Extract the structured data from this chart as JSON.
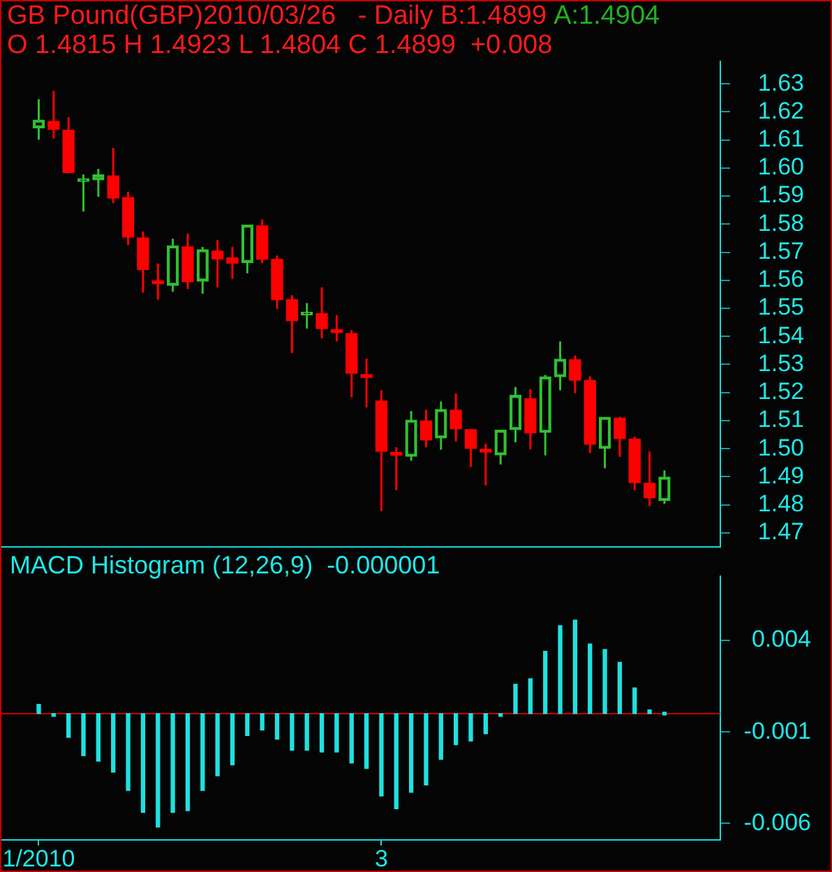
{
  "chart_data": [
    {
      "type": "candlestick",
      "title": "GB Pound(GBP)2010/03/26   - Daily B:1.4899",
      "subtitle": "O 1.4815 H 1.4923 L 1.4804 C 1.4899  +0.008",
      "annotations": [
        "A:1.4904"
      ],
      "categories": [
        null,
        null,
        null,
        null,
        null,
        null,
        null,
        null,
        null,
        null,
        null,
        null,
        null,
        null,
        null,
        null,
        null,
        null,
        null,
        null,
        null,
        null,
        null,
        null,
        null,
        null,
        null,
        null,
        null,
        null,
        null,
        null,
        null,
        null,
        null,
        null,
        null,
        null,
        null,
        null,
        null,
        null,
        null
      ],
      "ohlc": [
        [
          1.6143,
          1.6245,
          1.6101,
          1.6171
        ],
        [
          1.6166,
          1.6275,
          1.6105,
          1.6138
        ],
        [
          1.6135,
          1.6181,
          1.5981,
          1.5984
        ],
        [
          1.5952,
          1.5977,
          1.5845,
          1.596
        ],
        [
          1.5958,
          1.5997,
          1.5898,
          1.5976
        ],
        [
          1.5972,
          1.6072,
          1.5875,
          1.5893
        ],
        [
          1.5895,
          1.5916,
          1.5726,
          1.5754
        ],
        [
          1.5751,
          1.5774,
          1.5556,
          1.5638
        ],
        [
          1.5596,
          1.566,
          1.5531,
          1.5588
        ],
        [
          1.5582,
          1.5748,
          1.5559,
          1.5723
        ],
        [
          1.5719,
          1.5767,
          1.5569,
          1.5595
        ],
        [
          1.5597,
          1.5719,
          1.5552,
          1.5709
        ],
        [
          1.5704,
          1.5743,
          1.5575,
          1.5676
        ],
        [
          1.568,
          1.5719,
          1.5605,
          1.5661
        ],
        [
          1.5663,
          1.5797,
          1.5625,
          1.5797
        ],
        [
          1.5794,
          1.5817,
          1.5661,
          1.5675
        ],
        [
          1.5675,
          1.5688,
          1.5498,
          1.5531
        ],
        [
          1.5531,
          1.5547,
          1.5341,
          1.5456
        ],
        [
          1.5477,
          1.5519,
          1.5428,
          1.5485
        ],
        [
          1.5481,
          1.5575,
          1.5393,
          1.5428
        ],
        [
          1.5422,
          1.5476,
          1.5382,
          1.5414
        ],
        [
          1.541,
          1.5423,
          1.5183,
          1.5269
        ],
        [
          1.5262,
          1.5321,
          1.5147,
          1.5254
        ],
        [
          1.517,
          1.5208,
          1.4778,
          1.4991
        ],
        [
          1.4985,
          1.5005,
          1.4852,
          1.4977
        ],
        [
          1.4973,
          1.5134,
          1.4957,
          1.5102
        ],
        [
          1.5099,
          1.5139,
          1.5005,
          1.5031
        ],
        [
          1.5038,
          1.5168,
          1.4996,
          1.514
        ],
        [
          1.5137,
          1.5197,
          1.5026,
          1.5071
        ],
        [
          1.5068,
          1.5068,
          1.4935,
          1.5001
        ],
        [
          1.4994,
          1.5018,
          1.4869,
          1.4988
        ],
        [
          1.4978,
          1.5066,
          1.4944,
          1.5066
        ],
        [
          1.5068,
          1.522,
          1.5023,
          1.519
        ],
        [
          1.5178,
          1.5212,
          1.4998,
          1.5056
        ],
        [
          1.5058,
          1.5263,
          1.4976,
          1.5256
        ],
        [
          1.5256,
          1.5382,
          1.5208,
          1.5319
        ],
        [
          1.5317,
          1.5332,
          1.5198,
          1.5244
        ],
        [
          1.5243,
          1.5258,
          1.4985,
          1.5016
        ],
        [
          1.5001,
          1.5112,
          1.493,
          1.5112
        ],
        [
          1.5109,
          1.5114,
          1.4971,
          1.5036
        ],
        [
          1.5034,
          1.5043,
          1.4852,
          1.4879
        ],
        [
          1.4877,
          1.499,
          1.4795,
          1.4825
        ],
        [
          1.4815,
          1.4923,
          1.4804,
          1.4899
        ]
      ],
      "colors": [
        "#30c030",
        "#ff0000",
        "#ff0000",
        "#30c030",
        "#30c030",
        "#ff0000",
        "#ff0000",
        "#ff0000",
        "#ff0000",
        "#30c030",
        "#ff0000",
        "#30c030",
        "#ff0000",
        "#ff0000",
        "#30c030",
        "#ff0000",
        "#ff0000",
        "#ff0000",
        "#30c030",
        "#ff0000",
        "#ff0000",
        "#ff0000",
        "#ff0000",
        "#ff0000",
        "#ff0000",
        "#30c030",
        "#ff0000",
        "#30c030",
        "#ff0000",
        "#ff0000",
        "#ff0000",
        "#30c030",
        "#30c030",
        "#ff0000",
        "#30c030",
        "#30c030",
        "#ff0000",
        "#ff0000",
        "#30c030",
        "#ff0000",
        "#ff0000",
        "#ff0000",
        "#30c030"
      ],
      "ylim": [
        1.465,
        1.638
      ],
      "yticks": [
        1.47,
        1.48,
        1.49,
        {
          "value": 1.5,
          "label": "1.50"
        },
        1.51,
        1.52,
        1.53,
        1.54,
        1.55,
        1.56,
        1.57,
        1.58,
        1.59,
        {
          "value": 1.6,
          "label": "1.60"
        },
        1.61,
        1.62,
        1.63
      ]
    },
    {
      "type": "bar",
      "title": "MACD Histogram (12,26,9)  -0.000001",
      "categories": [
        "1/2010",
        null,
        null,
        null,
        null,
        null,
        null,
        null,
        null,
        null,
        null,
        null,
        null,
        null,
        null,
        null,
        null,
        null,
        null,
        null,
        null,
        null,
        null,
        "3",
        null,
        null,
        null,
        null,
        null,
        null,
        null,
        null,
        null,
        null,
        null,
        null,
        null,
        null,
        null,
        null,
        null,
        null,
        null
      ],
      "values": [
        0.0005,
        -0.0001,
        -0.0013,
        -0.0023,
        -0.0026,
        -0.0032,
        -0.0042,
        -0.0054,
        -0.0062,
        -0.0054,
        -0.0053,
        -0.0042,
        -0.0034,
        -0.0028,
        -0.0012,
        -0.0009,
        -0.0014,
        -0.002,
        -0.002,
        -0.0021,
        -0.0021,
        -0.0027,
        -0.003,
        -0.0045,
        -0.0052,
        -0.0043,
        -0.0039,
        -0.0025,
        -0.0017,
        -0.0015,
        -0.0011,
        -0.0001,
        0.0016,
        0.0019,
        0.0034,
        0.0048,
        0.0051,
        0.0038,
        0.0035,
        0.0028,
        0.0014,
        0.0002,
        0
      ],
      "color": "#20e0e0",
      "ylim": [
        -0.0069,
        0.0075
      ],
      "yticks": [
        0.004,
        -0.001,
        -0.006
      ],
      "ref_lines": [
        {
          "axis": "y",
          "value": 0,
          "color": "#c80000"
        }
      ]
    }
  ]
}
